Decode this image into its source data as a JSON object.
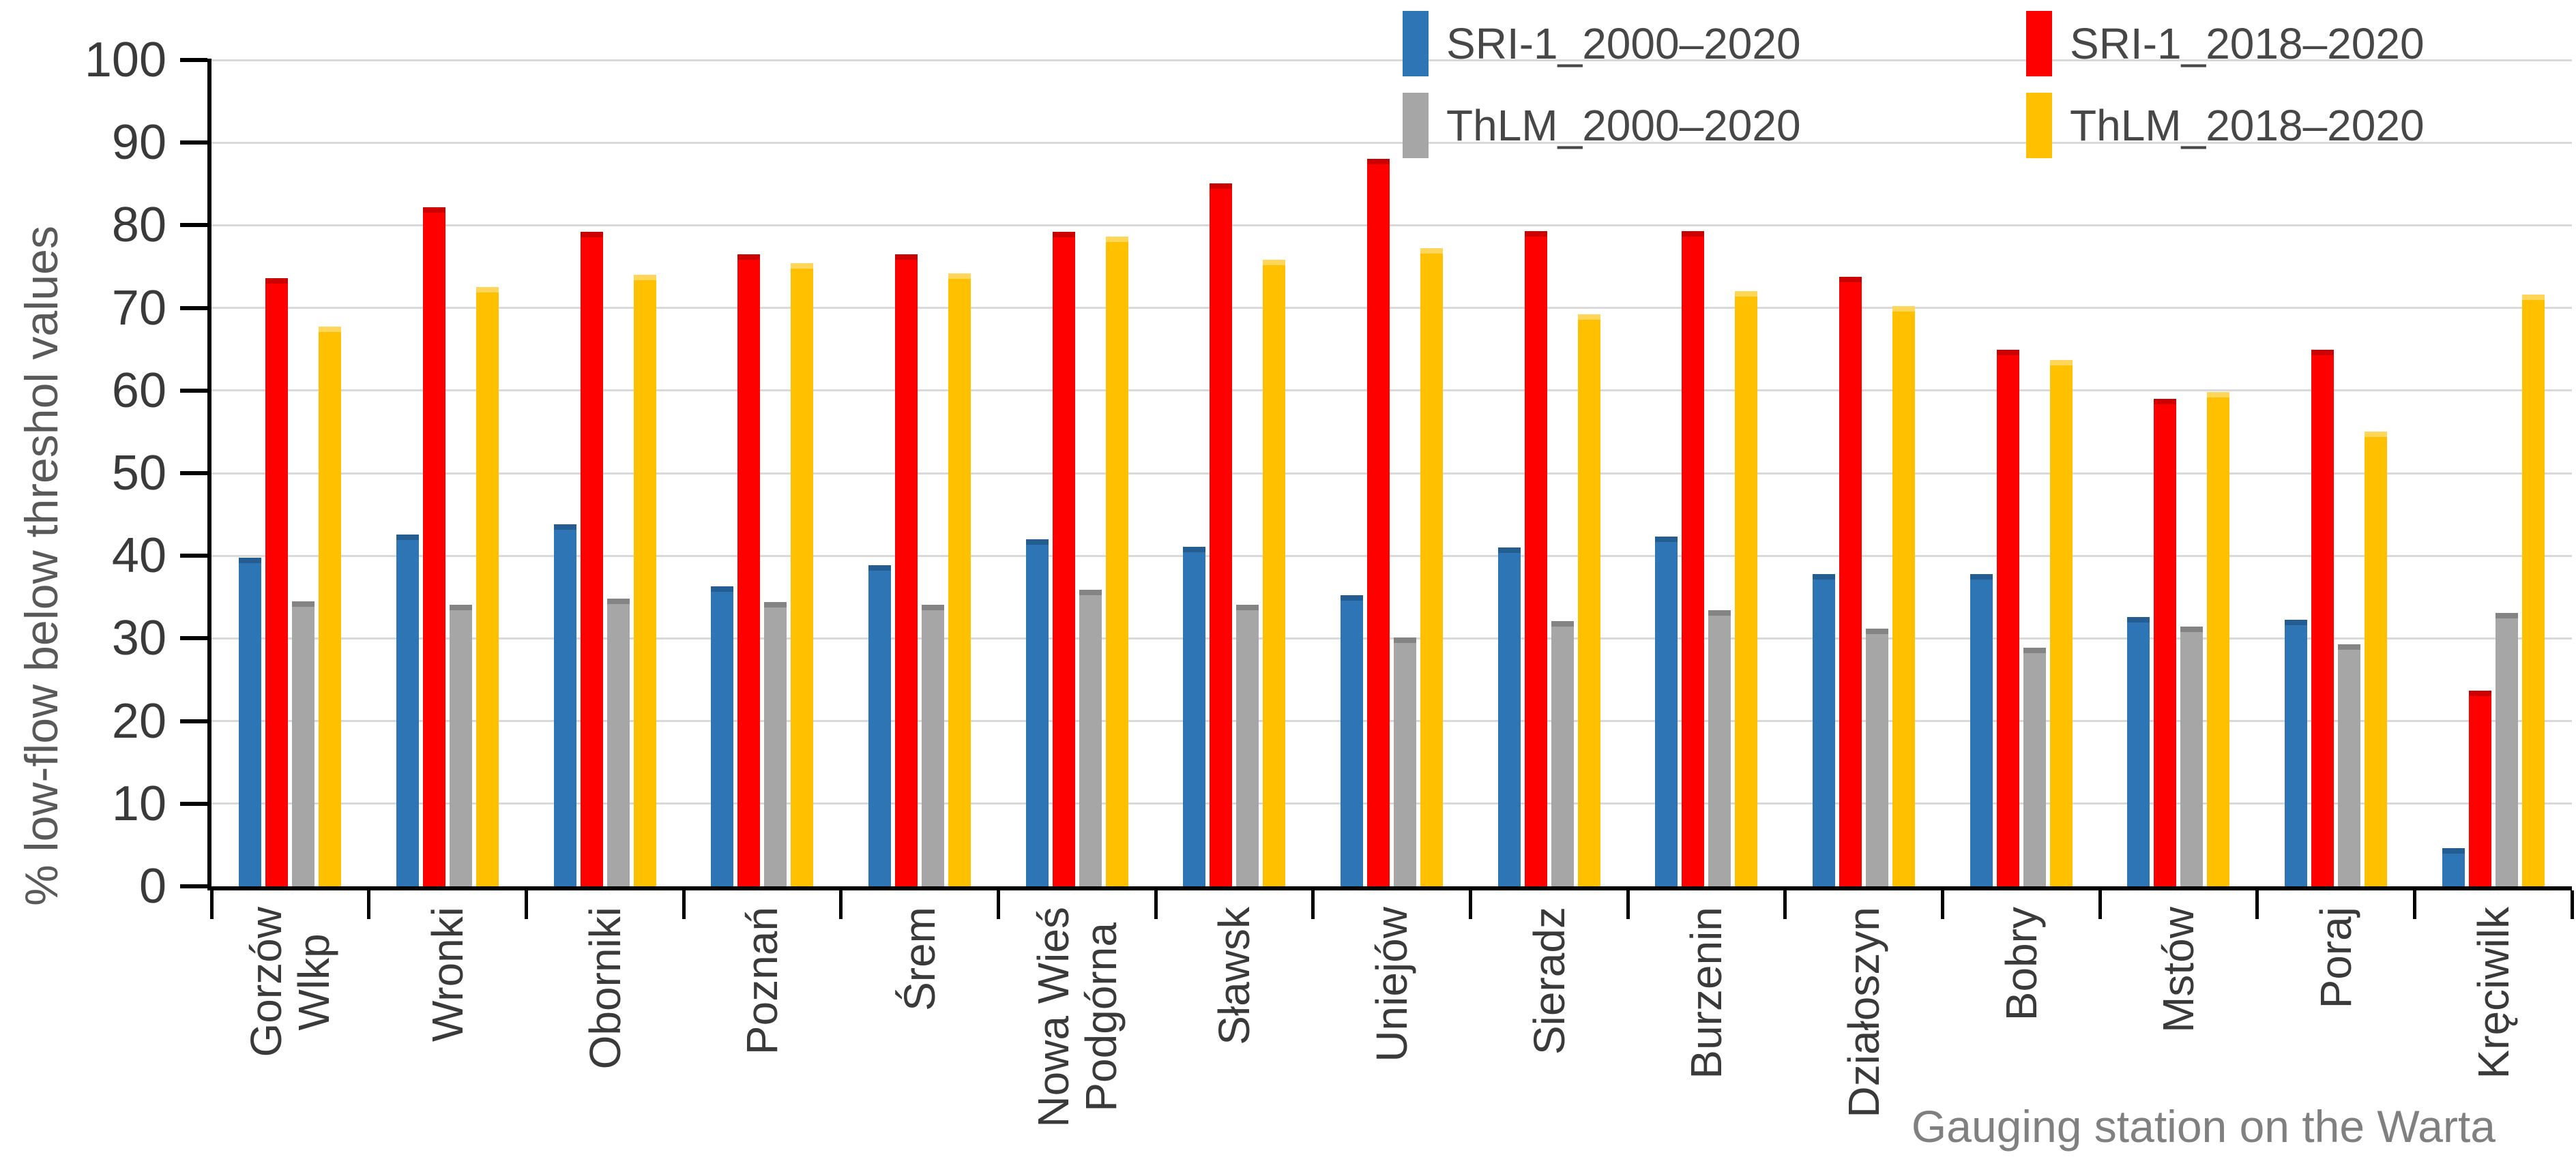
{
  "chart_data": {
    "type": "bar",
    "title": "",
    "xlabel": "Gauging station on the Warta",
    "ylabel": "% low-flow below threshol values",
    "ylim": [
      0,
      100
    ],
    "yticks": [
      0,
      10,
      20,
      30,
      40,
      50,
      60,
      70,
      80,
      90,
      100
    ],
    "grid": true,
    "legend_position": "top-right-two-rows",
    "categories": [
      {
        "label": "Gorzów Wlkp",
        "lines": [
          "Gorzów",
          "Wlkp"
        ]
      },
      {
        "label": "Wronki",
        "lines": [
          "Wronki"
        ]
      },
      {
        "label": "Oborniki",
        "lines": [
          "Oborniki"
        ]
      },
      {
        "label": "Poznań",
        "lines": [
          "Poznań"
        ]
      },
      {
        "label": "Śrem",
        "lines": [
          "Śrem"
        ]
      },
      {
        "label": "Nowa Wieś Podgórna",
        "lines": [
          "Nowa Wieś",
          "Podgórna"
        ]
      },
      {
        "label": "Sławsk",
        "lines": [
          "Sławsk"
        ]
      },
      {
        "label": "Uniejów",
        "lines": [
          "Uniejów"
        ]
      },
      {
        "label": "Sieradz",
        "lines": [
          "Sieradz"
        ]
      },
      {
        "label": "Burzenin",
        "lines": [
          "Burzenin"
        ]
      },
      {
        "label": "Działoszyn",
        "lines": [
          "Działoszyn"
        ]
      },
      {
        "label": "Bobry",
        "lines": [
          "Bobry"
        ]
      },
      {
        "label": "Mstów",
        "lines": [
          "Mstów"
        ]
      },
      {
        "label": "Poraj",
        "lines": [
          "Poraj"
        ]
      },
      {
        "label": "Kręciwilk",
        "lines": [
          "Kręciwilk"
        ]
      }
    ],
    "series": [
      {
        "name": "SRI-1_2000–2020",
        "color": "#2E75B6",
        "values": [
          39.8,
          42.6,
          43.8,
          36.3,
          38.9,
          42.0,
          41.1,
          35.2,
          41.0,
          42.3,
          37.8,
          37.8,
          32.6,
          32.3,
          4.6
        ]
      },
      {
        "name": "SRI-1_2018–2020",
        "color": "#FF0000",
        "values": [
          73.6,
          82.2,
          79.2,
          76.5,
          76.5,
          79.2,
          85.1,
          88.0,
          79.3,
          79.3,
          73.8,
          64.9,
          59.0,
          64.9,
          23.7
        ]
      },
      {
        "name": "ThLM_2000–2020",
        "color": "#A6A6A6",
        "values": [
          34.5,
          34.1,
          34.8,
          34.4,
          34.1,
          35.9,
          34.1,
          30.1,
          32.1,
          33.4,
          31.2,
          28.9,
          31.4,
          29.3,
          33.1
        ]
      },
      {
        "name": "ThLM_2018–2020",
        "color": "#FFC000",
        "values": [
          67.7,
          72.5,
          74.0,
          75.4,
          74.2,
          78.6,
          75.8,
          77.2,
          69.2,
          72.0,
          70.2,
          63.7,
          59.8,
          55.0,
          71.6
        ]
      }
    ],
    "style": {
      "grid_color": "#D9D9D9",
      "axis_color": "#000000",
      "tick_label_color": "#3A3A3A",
      "category_label_color": "#3A3A3A",
      "y_title_color": "#595959",
      "x_title_color": "#808080",
      "legend_text_color": "#474747",
      "background": "#FFFFFF"
    }
  }
}
